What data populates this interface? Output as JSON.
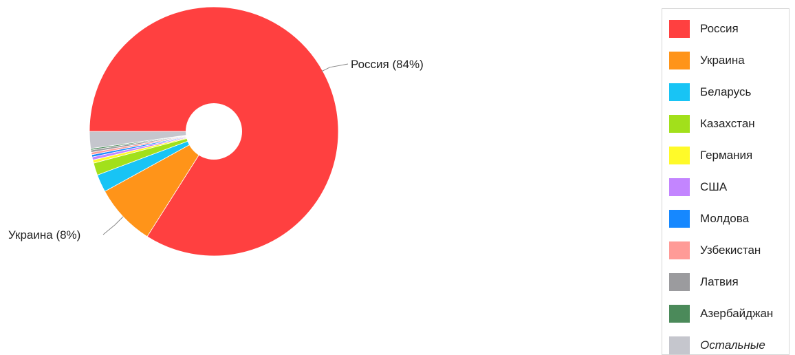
{
  "chart_data": {
    "type": "pie",
    "donut": true,
    "start_angle_deg": 180,
    "direction": "clockwise",
    "categories": [
      "Россия",
      "Украина",
      "Беларусь",
      "Казахстан",
      "Германия",
      "США",
      "Молдова",
      "Узбекистан",
      "Латвия",
      "Азербайджан",
      "Остальные"
    ],
    "values": [
      84.0,
      8.0,
      2.3,
      1.6,
      0.4,
      0.4,
      0.3,
      0.3,
      0.3,
      0.2,
      2.2
    ],
    "colors": [
      "#ff4040",
      "#ff9419",
      "#18c4f5",
      "#a2e01b",
      "#fffa29",
      "#c385ff",
      "#1688ff",
      "#ff9b97",
      "#9b9b9e",
      "#4b8a5a",
      "#c5c6cd"
    ],
    "slice_labels": [
      {
        "slice": 0,
        "text": "Россия (84%)"
      },
      {
        "slice": 1,
        "text": "Украина (8%)"
      }
    ],
    "legend": {
      "position": "right",
      "italic_entries": [
        "Остальные"
      ]
    }
  }
}
